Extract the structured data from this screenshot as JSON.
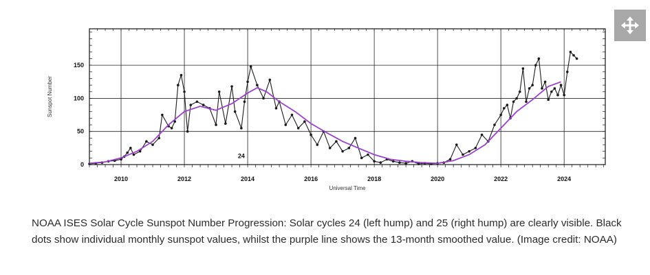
{
  "expand_icon": "move-arrows-icon",
  "colors": {
    "smoothed": "#9b3fd1",
    "monthly": "#1a1a1a",
    "expand_bg": "#a8a8a8"
  },
  "caption": "NOAA ISES Solar Cycle Sunspot Number Progression: Solar cycles 24 (left hump) and 25 (right hump) are clearly visible.  Black dots show individual monthly sunspot values, whilst the purple line shows the 13-month smoothed value.  (Image credit: NOAA)",
  "chart_data": {
    "type": "line",
    "title": "",
    "xlabel": "Universal Time",
    "ylabel": "Sunspot Number",
    "xlim": [
      2009.0,
      2025.3
    ],
    "ylim": [
      0,
      205
    ],
    "grid": true,
    "x_ticks": [
      2010,
      2012,
      2014,
      2016,
      2018,
      2020,
      2022,
      2024
    ],
    "x_tick_labels": [
      "2010",
      "2012",
      "2014",
      "2016",
      "2018",
      "2020",
      "2022",
      "2024"
    ],
    "y_ticks": [
      0,
      50,
      100,
      150
    ],
    "y_tick_labels": [
      "0",
      "50",
      "100",
      "150"
    ],
    "annotations": [
      {
        "text": "24",
        "x": 2013.8,
        "y": 10
      }
    ],
    "series": [
      {
        "name": "Monthly sunspot number",
        "color": "#1a1a1a",
        "markers": true,
        "x": [
          2009.0,
          2009.2,
          2009.4,
          2009.6,
          2009.8,
          2010.0,
          2010.1,
          2010.2,
          2010.3,
          2010.4,
          2010.6,
          2010.8,
          2011.0,
          2011.2,
          2011.3,
          2011.5,
          2011.6,
          2011.7,
          2011.8,
          2011.9,
          2012.0,
          2012.1,
          2012.2,
          2012.4,
          2012.6,
          2012.8,
          2013.0,
          2013.1,
          2013.3,
          2013.5,
          2013.6,
          2013.8,
          2013.9,
          2014.0,
          2014.1,
          2014.3,
          2014.5,
          2014.7,
          2014.9,
          2015.0,
          2015.2,
          2015.4,
          2015.6,
          2015.8,
          2016.0,
          2016.2,
          2016.4,
          2016.6,
          2016.8,
          2017.0,
          2017.2,
          2017.4,
          2017.6,
          2017.8,
          2018.0,
          2018.2,
          2018.4,
          2018.6,
          2018.8,
          2019.0,
          2019.2,
          2019.4,
          2019.6,
          2019.8,
          2020.0,
          2020.2,
          2020.4,
          2020.6,
          2020.8,
          2021.0,
          2021.2,
          2021.4,
          2021.6,
          2021.8,
          2022.0,
          2022.1,
          2022.2,
          2022.3,
          2022.4,
          2022.5,
          2022.6,
          2022.7,
          2022.8,
          2022.9,
          2023.0,
          2023.1,
          2023.2,
          2023.3,
          2023.4,
          2023.5,
          2023.6,
          2023.7,
          2023.8,
          2023.9,
          2024.0,
          2024.1,
          2024.2,
          2024.3,
          2024.4
        ],
        "values": [
          1,
          2,
          3,
          5,
          6,
          8,
          12,
          18,
          25,
          15,
          20,
          35,
          30,
          40,
          75,
          58,
          55,
          65,
          120,
          135,
          110,
          50,
          90,
          95,
          90,
          85,
          60,
          110,
          62,
          118,
          80,
          55,
          95,
          125,
          148,
          120,
          100,
          128,
          85,
          95,
          60,
          75,
          55,
          65,
          45,
          30,
          50,
          25,
          35,
          20,
          25,
          40,
          10,
          15,
          5,
          3,
          8,
          5,
          3,
          2,
          5,
          1,
          2,
          1,
          2,
          3,
          8,
          30,
          15,
          20,
          25,
          45,
          35,
          60,
          75,
          85,
          90,
          70,
          95,
          100,
          110,
          145,
          95,
          115,
          120,
          150,
          160,
          115,
          125,
          98,
          110,
          115,
          105,
          120,
          105,
          140,
          170,
          165,
          160
        ]
      },
      {
        "name": "13-month smoothed",
        "color": "#9b3fd1",
        "markers": false,
        "x": [
          2009.0,
          2009.5,
          2010.0,
          2010.5,
          2011.0,
          2011.5,
          2012.0,
          2012.5,
          2013.0,
          2013.5,
          2014.0,
          2014.3,
          2014.6,
          2015.0,
          2015.5,
          2016.0,
          2016.5,
          2017.0,
          2017.5,
          2018.0,
          2018.5,
          2019.0,
          2019.5,
          2020.0,
          2020.5,
          2021.0,
          2021.5,
          2022.0,
          2022.5,
          2023.0,
          2023.5,
          2023.9
        ],
        "values": [
          2,
          4,
          10,
          20,
          35,
          60,
          80,
          88,
          82,
          92,
          108,
          116,
          110,
          95,
          80,
          62,
          48,
          35,
          25,
          15,
          8,
          5,
          3,
          2,
          6,
          15,
          30,
          55,
          80,
          98,
          118,
          125
        ]
      }
    ]
  }
}
